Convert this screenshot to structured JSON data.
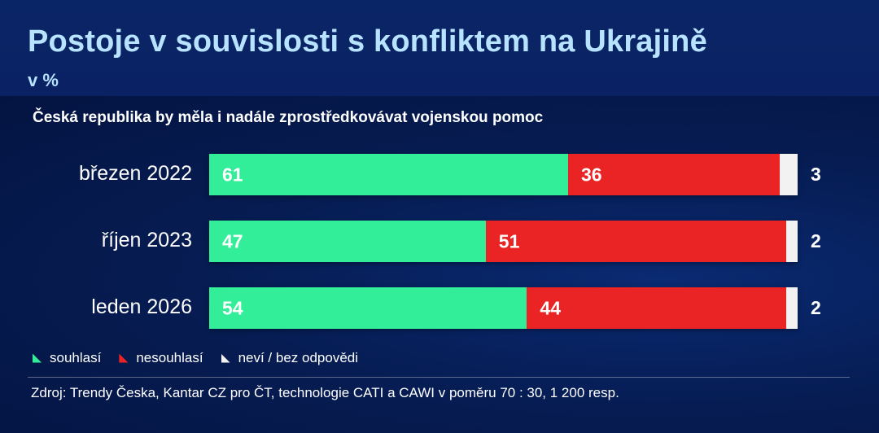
{
  "header": {
    "title": "Postoje v souvislosti s konfliktem na Ukrajině",
    "subtitle": "v %"
  },
  "chart_data": {
    "type": "bar",
    "orientation": "horizontal",
    "stacked": true,
    "title": "Postoje v souvislosti s konfliktem na Ukrajině",
    "subtitle": "v %",
    "question": "Česká republika by měla i nadále zprostředkovávat vojenskou pomoc",
    "categories": [
      "březen 2022",
      "říjen 2023",
      "leden 2026"
    ],
    "series": [
      {
        "name": "souhlasí",
        "color": "#33ee99",
        "values": [
          61,
          47,
          54
        ]
      },
      {
        "name": "nesouhlasí",
        "color": "#ea2424",
        "values": [
          36,
          51,
          44
        ]
      },
      {
        "name": "neví / bez odpovědi",
        "color": "#f2f2f2",
        "values": [
          3,
          2,
          2
        ]
      }
    ],
    "xlim": [
      0,
      100
    ],
    "grid": false,
    "legend_position": "bottom-left",
    "source": "Zdroj: Trendy Česka, Kantar CZ pro ČT, technologie CATI a CAWI v poměru 70 : 30, 1 200 resp."
  },
  "colors": {
    "title_text": "#b8e3ff",
    "background": "#061c52",
    "agree": "#33ee99",
    "disagree": "#ea2424",
    "dont_know": "#f2f2f2"
  }
}
